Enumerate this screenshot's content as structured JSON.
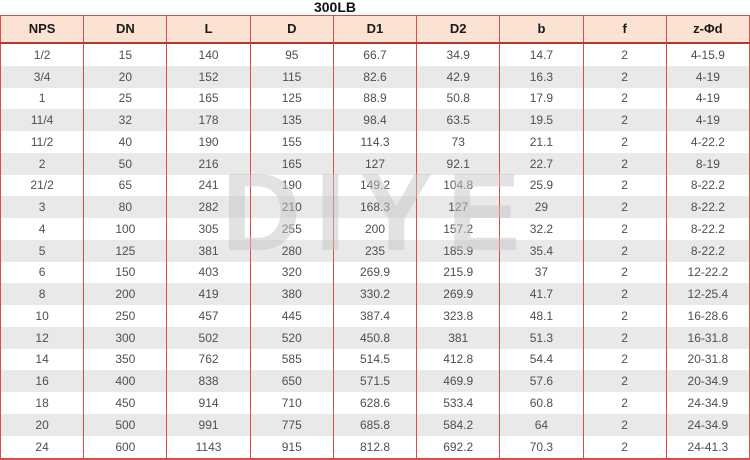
{
  "page_title": "300LB",
  "watermark_text": "DIYE",
  "colors": {
    "border_red": "#e14a4a",
    "header_bg": "#fbe2d3",
    "stripe_gray": "#e9e9e9",
    "header_underline": "#b03a36",
    "text_dark": "#4f4f4f"
  },
  "chart_data": {
    "type": "table",
    "title": "300LB",
    "columns": [
      "NPS",
      "DN",
      "L",
      "D",
      "D1",
      "D2",
      "b",
      "f",
      "z-Φd"
    ],
    "rows": [
      [
        "1/2",
        "15",
        "140",
        "95",
        "66.7",
        "34.9",
        "14.7",
        "2",
        "4-15.9"
      ],
      [
        "3/4",
        "20",
        "152",
        "115",
        "82.6",
        "42.9",
        "16.3",
        "2",
        "4-19"
      ],
      [
        "1",
        "25",
        "165",
        "125",
        "88.9",
        "50.8",
        "17.9",
        "2",
        "4-19"
      ],
      [
        "11/4",
        "32",
        "178",
        "135",
        "98.4",
        "63.5",
        "19.5",
        "2",
        "4-19"
      ],
      [
        "11/2",
        "40",
        "190",
        "155",
        "114.3",
        "73",
        "21.1",
        "2",
        "4-22.2"
      ],
      [
        "2",
        "50",
        "216",
        "165",
        "127",
        "92.1",
        "22.7",
        "2",
        "8-19"
      ],
      [
        "21/2",
        "65",
        "241",
        "190",
        "149.2",
        "104.8",
        "25.9",
        "2",
        "8-22.2"
      ],
      [
        "3",
        "80",
        "282",
        "210",
        "168.3",
        "127",
        "29",
        "2",
        "8-22.2"
      ],
      [
        "4",
        "100",
        "305",
        "255",
        "200",
        "157.2",
        "32.2",
        "2",
        "8-22.2"
      ],
      [
        "5",
        "125",
        "381",
        "280",
        "235",
        "185.9",
        "35.4",
        "2",
        "8-22.2"
      ],
      [
        "6",
        "150",
        "403",
        "320",
        "269.9",
        "215.9",
        "37",
        "2",
        "12-22.2"
      ],
      [
        "8",
        "200",
        "419",
        "380",
        "330.2",
        "269.9",
        "41.7",
        "2",
        "12-25.4"
      ],
      [
        "10",
        "250",
        "457",
        "445",
        "387.4",
        "323.8",
        "48.1",
        "2",
        "16-28.6"
      ],
      [
        "12",
        "300",
        "502",
        "520",
        "450.8",
        "381",
        "51.3",
        "2",
        "16-31.8"
      ],
      [
        "14",
        "350",
        "762",
        "585",
        "514.5",
        "412.8",
        "54.4",
        "2",
        "20-31.8"
      ],
      [
        "16",
        "400",
        "838",
        "650",
        "571.5",
        "469.9",
        "57.6",
        "2",
        "20-34.9"
      ],
      [
        "18",
        "450",
        "914",
        "710",
        "628.6",
        "533.4",
        "60.8",
        "2",
        "24-34.9"
      ],
      [
        "20",
        "500",
        "991",
        "775",
        "685.8",
        "584.2",
        "64",
        "2",
        "24-34.9"
      ],
      [
        "24",
        "600",
        "1143",
        "915",
        "812.8",
        "692.2",
        "70.3",
        "2",
        "24-41.3"
      ]
    ]
  }
}
